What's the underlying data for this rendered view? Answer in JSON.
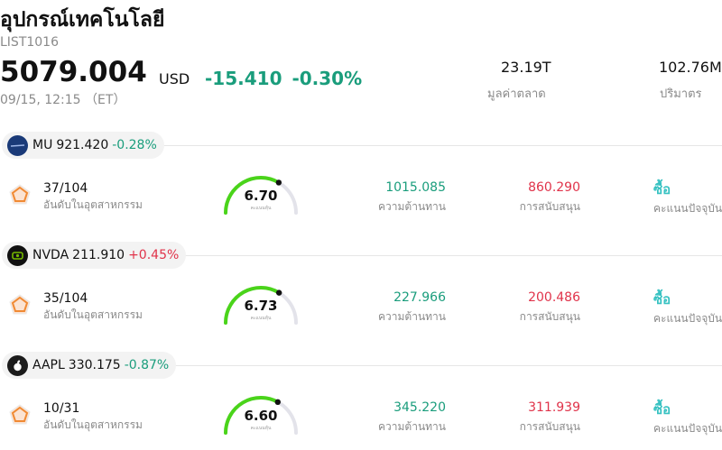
{
  "header": {
    "title": "อุปกรณ์เทคโนโลยี",
    "code": "LIST1016",
    "price": "5079.004",
    "currency": "USD",
    "change": "-15.410",
    "change_pct": "-0.30%",
    "time": "09/15, 12:15 （ET）"
  },
  "stats": {
    "market_cap_value": "23.19T",
    "market_cap_label": "มูลค่าตลาด",
    "volume_value": "102.76M",
    "volume_label": "ปริมาตร"
  },
  "colors": {
    "negative": "#1a9d7c",
    "positive": "#e0334a",
    "gauge": "#4ad41a",
    "buy": "#38c2c2"
  },
  "stocks": [
    {
      "symbol": "MU",
      "price": "921.420",
      "change_pct": "-0.28%",
      "direction": "negative",
      "logo_icon": "micron-logo-icon",
      "rank": "37/104",
      "rank_label": "อันดับในอุตสาหกรรม",
      "score": "6.70",
      "score_label": "คะแนนหุ้น",
      "score_fraction": 0.67,
      "resistance": "1015.085",
      "resistance_label": "ความต้านทาน",
      "support": "860.290",
      "support_label": "การสนับสนุน",
      "rating": "ซื้อ",
      "rating_label": "คะแนนปัจจุบัน"
    },
    {
      "symbol": "NVDA",
      "price": "211.910",
      "change_pct": "+0.45%",
      "direction": "positive",
      "logo_icon": "nvidia-logo-icon",
      "rank": "35/104",
      "rank_label": "อันดับในอุตสาหกรรม",
      "score": "6.73",
      "score_label": "คะแนนหุ้น",
      "score_fraction": 0.673,
      "resistance": "227.966",
      "resistance_label": "ความต้านทาน",
      "support": "200.486",
      "support_label": "การสนับสนุน",
      "rating": "ซื้อ",
      "rating_label": "คะแนนปัจจุบัน"
    },
    {
      "symbol": "AAPL",
      "price": "330.175",
      "change_pct": "-0.87%",
      "direction": "negative",
      "logo_icon": "apple-logo-icon",
      "rank": "10/31",
      "rank_label": "อันดับในอุตสาหกรรม",
      "score": "6.60",
      "score_label": "คะแนนหุ้น",
      "score_fraction": 0.66,
      "resistance": "345.220",
      "resistance_label": "ความต้านทาน",
      "support": "311.939",
      "support_label": "การสนับสนุน",
      "rating": "ซื้อ",
      "rating_label": "คะแนนปัจจุบัน"
    }
  ]
}
